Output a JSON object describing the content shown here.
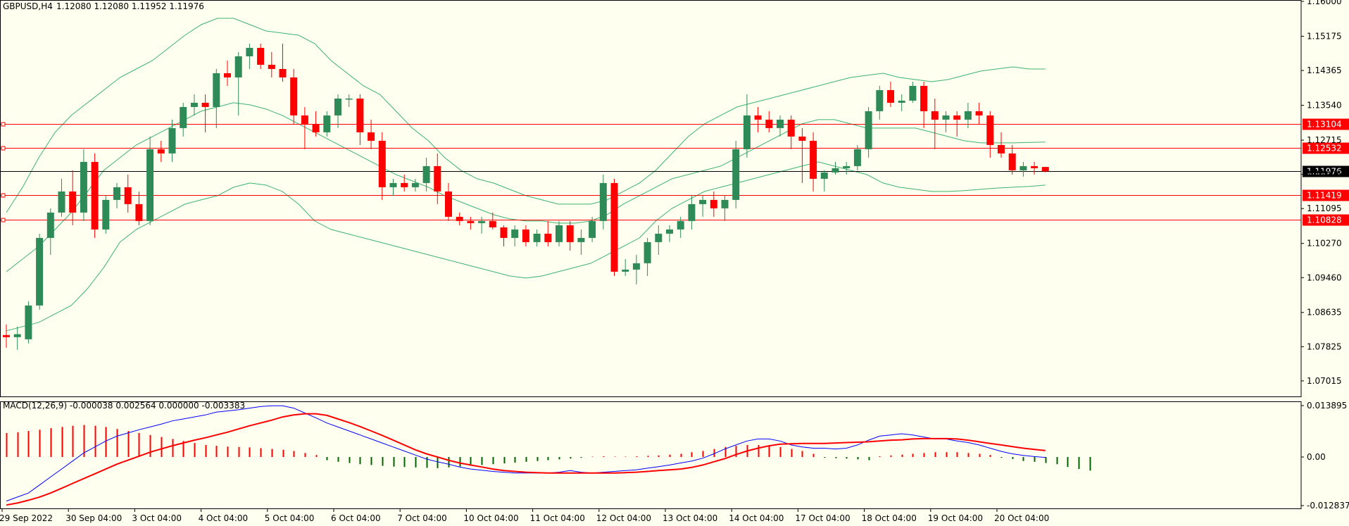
{
  "header": {
    "symbol": "GBPUSD,H4",
    "ohlc": "1.12080 1.12080 1.11952 1.11976"
  },
  "macd_header": "MACD(12,26,9) -0.000038 0.002564 0.000000 -0.003383",
  "colors": {
    "background": "#fffff0",
    "bull": "#2e8b57",
    "bear": "#ff0000",
    "bands": "#3cb371",
    "macd_line": "#0000ff",
    "signal_line": "#ff0000",
    "level_line": "#ff0000",
    "current_line": "#000000"
  },
  "chart_data": [
    {
      "type": "candlestick",
      "symbol": "GBPUSD",
      "timeframe": "H4",
      "ylim": [
        1.0663,
        1.16
      ],
      "y_ticks": [
        "1.16000",
        "1.15175",
        "1.14365",
        "1.13540",
        "1.12715",
        "1.11905",
        "1.11095",
        "1.10270",
        "1.09460",
        "1.08635",
        "1.07825",
        "1.07015"
      ],
      "x_ticks": [
        "29 Sep 2022",
        "30 Sep 04:00",
        "3 Oct 04:00",
        "4 Oct 04:00",
        "5 Oct 04:00",
        "6 Oct 04:00",
        "7 Oct 04:00",
        "10 Oct 04:00",
        "11 Oct 04:00",
        "12 Oct 04:00",
        "13 Oct 04:00",
        "14 Oct 04:00",
        "17 Oct 04:00",
        "18 Oct 04:00",
        "19 Oct 04:00",
        "20 Oct 04:00"
      ],
      "candles": [
        [
          1.081,
          1.0835,
          1.078,
          1.0805
        ],
        [
          1.0805,
          1.083,
          1.0775,
          1.0812
        ],
        [
          1.08,
          1.089,
          1.079,
          1.088
        ],
        [
          1.088,
          1.105,
          1.087,
          1.104
        ],
        [
          1.104,
          1.111,
          1.1,
          1.11
        ],
        [
          1.11,
          1.118,
          1.109,
          1.115
        ],
        [
          1.115,
          1.12,
          1.107,
          1.11
        ],
        [
          1.11,
          1.125,
          1.108,
          1.122
        ],
        [
          1.122,
          1.124,
          1.104,
          1.106
        ],
        [
          1.106,
          1.114,
          1.105,
          1.113
        ],
        [
          1.113,
          1.117,
          1.111,
          1.116
        ],
        [
          1.116,
          1.119,
          1.11,
          1.112
        ],
        [
          1.112,
          1.115,
          1.107,
          1.108
        ],
        [
          1.108,
          1.128,
          1.107,
          1.125
        ],
        [
          1.125,
          1.127,
          1.122,
          1.124
        ],
        [
          1.124,
          1.132,
          1.122,
          1.13
        ],
        [
          1.13,
          1.136,
          1.128,
          1.135
        ],
        [
          1.135,
          1.138,
          1.133,
          1.136
        ],
        [
          1.136,
          1.138,
          1.129,
          1.135
        ],
        [
          1.135,
          1.144,
          1.13,
          1.143
        ],
        [
          1.143,
          1.146,
          1.14,
          1.142
        ],
        [
          1.142,
          1.148,
          1.133,
          1.147
        ],
        [
          1.147,
          1.15,
          1.144,
          1.149
        ],
        [
          1.149,
          1.15,
          1.144,
          1.145
        ],
        [
          1.145,
          1.148,
          1.142,
          1.144
        ],
        [
          1.144,
          1.15,
          1.141,
          1.142
        ],
        [
          1.142,
          1.144,
          1.131,
          1.133
        ],
        [
          1.133,
          1.135,
          1.125,
          1.131
        ],
        [
          1.131,
          1.134,
          1.128,
          1.129
        ],
        [
          1.129,
          1.134,
          1.128,
          1.133
        ],
        [
          1.133,
          1.138,
          1.13,
          1.137
        ],
        [
          1.137,
          1.138,
          1.135,
          1.137
        ],
        [
          1.137,
          1.138,
          1.126,
          1.129
        ],
        [
          1.129,
          1.132,
          1.125,
          1.127
        ],
        [
          1.127,
          1.129,
          1.113,
          1.116
        ],
        [
          1.116,
          1.118,
          1.114,
          1.117
        ],
        [
          1.117,
          1.119,
          1.115,
          1.116
        ],
        [
          1.116,
          1.118,
          1.115,
          1.117
        ],
        [
          1.117,
          1.123,
          1.115,
          1.121
        ],
        [
          1.121,
          1.124,
          1.112,
          1.115
        ],
        [
          1.115,
          1.117,
          1.108,
          1.109
        ],
        [
          1.109,
          1.11,
          1.107,
          1.108
        ],
        [
          1.108,
          1.109,
          1.106,
          1.1075
        ],
        [
          1.1075,
          1.109,
          1.105,
          1.108
        ],
        [
          1.108,
          1.11,
          1.106,
          1.1065
        ],
        [
          1.1065,
          1.107,
          1.102,
          1.104
        ],
        [
          1.104,
          1.107,
          1.102,
          1.106
        ],
        [
          1.106,
          1.107,
          1.102,
          1.103
        ],
        [
          1.103,
          1.106,
          1.102,
          1.105
        ],
        [
          1.105,
          1.108,
          1.102,
          1.103
        ],
        [
          1.103,
          1.108,
          1.102,
          1.107
        ],
        [
          1.107,
          1.108,
          1.101,
          1.103
        ],
        [
          1.103,
          1.106,
          1.1,
          1.104
        ],
        [
          1.104,
          1.109,
          1.103,
          1.108
        ],
        [
          1.108,
          1.119,
          1.106,
          1.117
        ],
        [
          1.117,
          1.118,
          1.095,
          1.096
        ],
        [
          1.096,
          1.099,
          1.095,
          1.0965
        ],
        [
          1.0965,
          1.1,
          1.093,
          1.098
        ],
        [
          1.098,
          1.104,
          1.095,
          1.103
        ],
        [
          1.103,
          1.107,
          1.1,
          1.105
        ],
        [
          1.105,
          1.107,
          1.103,
          1.106
        ],
        [
          1.106,
          1.109,
          1.104,
          1.108
        ],
        [
          1.108,
          1.114,
          1.106,
          1.112
        ],
        [
          1.112,
          1.114,
          1.109,
          1.113
        ],
        [
          1.113,
          1.115,
          1.109,
          1.111
        ],
        [
          1.111,
          1.114,
          1.108,
          1.113
        ],
        [
          1.113,
          1.127,
          1.111,
          1.125
        ],
        [
          1.125,
          1.138,
          1.123,
          1.133
        ],
        [
          1.133,
          1.135,
          1.129,
          1.132
        ],
        [
          1.132,
          1.134,
          1.129,
          1.13
        ],
        [
          1.13,
          1.133,
          1.128,
          1.132
        ],
        [
          1.132,
          1.133,
          1.125,
          1.128
        ],
        [
          1.128,
          1.13,
          1.117,
          1.127
        ],
        [
          1.127,
          1.129,
          1.115,
          1.118
        ],
        [
          1.118,
          1.12,
          1.115,
          1.1195
        ],
        [
          1.1195,
          1.122,
          1.119,
          1.1205
        ],
        [
          1.1205,
          1.122,
          1.119,
          1.121
        ],
        [
          1.121,
          1.126,
          1.12,
          1.125
        ],
        [
          1.125,
          1.135,
          1.123,
          1.134
        ],
        [
          1.134,
          1.14,
          1.132,
          1.139
        ],
        [
          1.139,
          1.141,
          1.135,
          1.136
        ],
        [
          1.136,
          1.138,
          1.134,
          1.1365
        ],
        [
          1.1365,
          1.141,
          1.136,
          1.14
        ],
        [
          1.14,
          1.141,
          1.13,
          1.134
        ],
        [
          1.134,
          1.137,
          1.125,
          1.132
        ],
        [
          1.132,
          1.134,
          1.129,
          1.133
        ],
        [
          1.133,
          1.134,
          1.128,
          1.132
        ],
        [
          1.132,
          1.136,
          1.13,
          1.134
        ],
        [
          1.134,
          1.136,
          1.131,
          1.133
        ],
        [
          1.133,
          1.134,
          1.123,
          1.126
        ],
        [
          1.126,
          1.129,
          1.123,
          1.124
        ],
        [
          1.124,
          1.126,
          1.119,
          1.12
        ],
        [
          1.12,
          1.122,
          1.1185,
          1.121
        ],
        [
          1.121,
          1.122,
          1.119,
          1.1205
        ],
        [
          1.1208,
          1.1208,
          1.11952,
          1.11976
        ]
      ],
      "bollinger": {
        "upper": [
          1.11,
          1.116,
          1.123,
          1.129,
          1.133,
          1.136,
          1.139,
          1.142,
          1.144,
          1.146,
          1.149,
          1.152,
          1.1545,
          1.156,
          1.156,
          1.1545,
          1.153,
          1.1525,
          1.152,
          1.15,
          1.146,
          1.143,
          1.14,
          1.138,
          1.134,
          1.13,
          1.127,
          1.123,
          1.12,
          1.118,
          1.117,
          1.1155,
          1.114,
          1.113,
          1.112,
          1.112,
          1.112,
          1.113,
          1.115,
          1.117,
          1.12,
          1.124,
          1.128,
          1.131,
          1.133,
          1.135,
          1.136,
          1.137,
          1.138,
          1.139,
          1.14,
          1.141,
          1.142,
          1.1425,
          1.143,
          1.142,
          1.1415,
          1.141,
          1.1415,
          1.1425,
          1.1435,
          1.144,
          1.1445,
          1.144,
          1.144
        ],
        "middle": [
          1.096,
          1.099,
          1.102,
          1.106,
          1.11,
          1.115,
          1.12,
          1.123,
          1.126,
          1.128,
          1.13,
          1.132,
          1.134,
          1.135,
          1.136,
          1.1355,
          1.1345,
          1.133,
          1.131,
          1.129,
          1.127,
          1.125,
          1.123,
          1.121,
          1.119,
          1.1175,
          1.116,
          1.114,
          1.1125,
          1.111,
          1.1095,
          1.1085,
          1.108,
          1.108,
          1.1075,
          1.1075,
          1.108,
          1.1095,
          1.112,
          1.114,
          1.116,
          1.118,
          1.119,
          1.12,
          1.121,
          1.123,
          1.125,
          1.127,
          1.129,
          1.131,
          1.132,
          1.132,
          1.131,
          1.13,
          1.13,
          1.13,
          1.13,
          1.129,
          1.128,
          1.127,
          1.1265,
          1.1265,
          1.1265,
          1.1266,
          1.1267
        ],
        "lower": [
          1.082,
          1.083,
          1.084,
          1.086,
          1.088,
          1.092,
          1.097,
          1.103,
          1.106,
          1.108,
          1.11,
          1.112,
          1.113,
          1.114,
          1.116,
          1.117,
          1.1165,
          1.115,
          1.112,
          1.108,
          1.106,
          1.105,
          1.104,
          1.103,
          1.102,
          1.101,
          1.1,
          1.099,
          1.098,
          1.097,
          1.096,
          1.095,
          1.0945,
          1.095,
          1.096,
          1.097,
          1.098,
          1.1,
          1.102,
          1.104,
          1.108,
          1.111,
          1.113,
          1.115,
          1.116,
          1.117,
          1.118,
          1.119,
          1.12,
          1.121,
          1.122,
          1.121,
          1.12,
          1.119,
          1.117,
          1.116,
          1.1155,
          1.115,
          1.115,
          1.1152,
          1.1155,
          1.1158,
          1.116,
          1.1162,
          1.1165
        ]
      },
      "level_lines": [
        "1.13104",
        "1.12532",
        "1.11419",
        "1.10828"
      ],
      "current_price": "1.11976"
    },
    {
      "type": "macd",
      "name": "MACD(12,26,9)",
      "ylim": [
        -0.012837,
        0.013895
      ],
      "y_ticks": [
        "0.013895",
        "0.00",
        "-0.012837"
      ],
      "histogram": [
        0.006,
        0.0062,
        0.0065,
        0.0068,
        0.0072,
        0.0075,
        0.0078,
        0.008,
        0.0078,
        0.0075,
        0.007,
        0.0065,
        0.006,
        0.0055,
        0.005,
        0.0045,
        0.004,
        0.0035,
        0.003,
        0.0028,
        0.0026,
        0.0025,
        0.0024,
        0.0022,
        0.002,
        0.0018,
        0.0015,
        0.001,
        0.0005,
        -0.0008,
        -0.0012,
        -0.0015,
        -0.0018,
        -0.002,
        -0.0022,
        -0.0024,
        -0.0025,
        -0.0026,
        -0.0027,
        -0.0028,
        -0.0026,
        -0.0024,
        -0.0022,
        -0.002,
        -0.0018,
        -0.0016,
        -0.0014,
        -0.0012,
        -0.001,
        -0.0008,
        -0.0006,
        -0.0004,
        -0.0002,
        0.0001,
        0.0002,
        0.0001,
        0.0001,
        0.0002,
        0.0003,
        0.0004,
        0.0006,
        0.0008,
        0.0012,
        0.0015,
        0.002,
        0.0025,
        0.0028,
        0.003,
        0.003,
        0.0028,
        0.0025,
        0.002,
        0.0015,
        0.0008,
        -0.0002,
        -0.0003,
        -0.0004,
        -0.0006,
        -0.0008,
        0.0002,
        0.0004,
        0.0006,
        0.0008,
        0.001,
        0.0012,
        0.0012,
        0.0012,
        0.001,
        0.0008,
        0.0005,
        -0.0002,
        -0.0005,
        -0.001,
        -0.0012,
        -0.0015,
        -0.0018,
        -0.0025,
        -0.003,
        -0.0034
      ],
      "macd_line": [
        -0.011,
        -0.01,
        -0.009,
        -0.007,
        -0.005,
        -0.003,
        -0.001,
        0.001,
        0.0025,
        0.004,
        0.0052,
        0.006,
        0.0068,
        0.0075,
        0.0082,
        0.009,
        0.0095,
        0.01,
        0.0105,
        0.0112,
        0.0115,
        0.0118,
        0.0122,
        0.0126,
        0.0128,
        0.0128,
        0.0122,
        0.011,
        0.0098,
        0.0085,
        0.0075,
        0.0065,
        0.0055,
        0.0045,
        0.0035,
        0.0025,
        0.0015,
        0.0005,
        -0.0005,
        -0.0012,
        -0.0018,
        -0.0025,
        -0.003,
        -0.0033,
        -0.0036,
        -0.0038,
        -0.004,
        -0.004,
        -0.004,
        -0.004,
        -0.0038,
        -0.0034,
        -0.0038,
        -0.004,
        -0.0038,
        -0.0036,
        -0.0034,
        -0.0032,
        -0.0028,
        -0.0024,
        -0.002,
        -0.0015,
        -0.001,
        -0.0003,
        0.0008,
        0.002,
        0.003,
        0.004,
        0.0045,
        0.0045,
        0.004,
        0.003,
        0.0025,
        0.0022,
        0.0022,
        0.002,
        0.0022,
        0.003,
        0.0042,
        0.0052,
        0.0055,
        0.0058,
        0.0055,
        0.005,
        0.0045,
        0.0045,
        0.004,
        0.0036,
        0.003,
        0.0022,
        0.0014,
        0.0008,
        0.0004,
        0.0001,
        -0.0001
      ],
      "signal_line": [
        -0.012,
        -0.0115,
        -0.0108,
        -0.01,
        -0.009,
        -0.0078,
        -0.0066,
        -0.0054,
        -0.0042,
        -0.003,
        -0.0018,
        -0.0008,
        0.0002,
        0.0012,
        0.002,
        0.0028,
        0.0035,
        0.0042,
        0.0048,
        0.0055,
        0.0062,
        0.007,
        0.0078,
        0.0085,
        0.0092,
        0.01,
        0.0105,
        0.0108,
        0.0108,
        0.0104,
        0.0095,
        0.0086,
        0.0076,
        0.0065,
        0.0054,
        0.0042,
        0.003,
        0.0018,
        0.0008,
        0.0,
        -0.0008,
        -0.0015,
        -0.002,
        -0.0025,
        -0.003,
        -0.0034,
        -0.0036,
        -0.0038,
        -0.0039,
        -0.004,
        -0.004,
        -0.004,
        -0.004,
        -0.004,
        -0.004,
        -0.004,
        -0.0039,
        -0.0038,
        -0.0036,
        -0.0034,
        -0.0032,
        -0.003,
        -0.0026,
        -0.002,
        -0.0012,
        -0.0004,
        0.0006,
        0.0015,
        0.0022,
        0.0028,
        0.0032,
        0.0033,
        0.0034,
        0.0034,
        0.0034,
        0.0035,
        0.0036,
        0.0037,
        0.0038,
        0.004,
        0.0042,
        0.0043,
        0.0045,
        0.0046,
        0.0046,
        0.0046,
        0.0045,
        0.0042,
        0.0038,
        0.0034,
        0.003,
        0.0026,
        0.0022,
        0.0019,
        0.0016
      ]
    }
  ]
}
